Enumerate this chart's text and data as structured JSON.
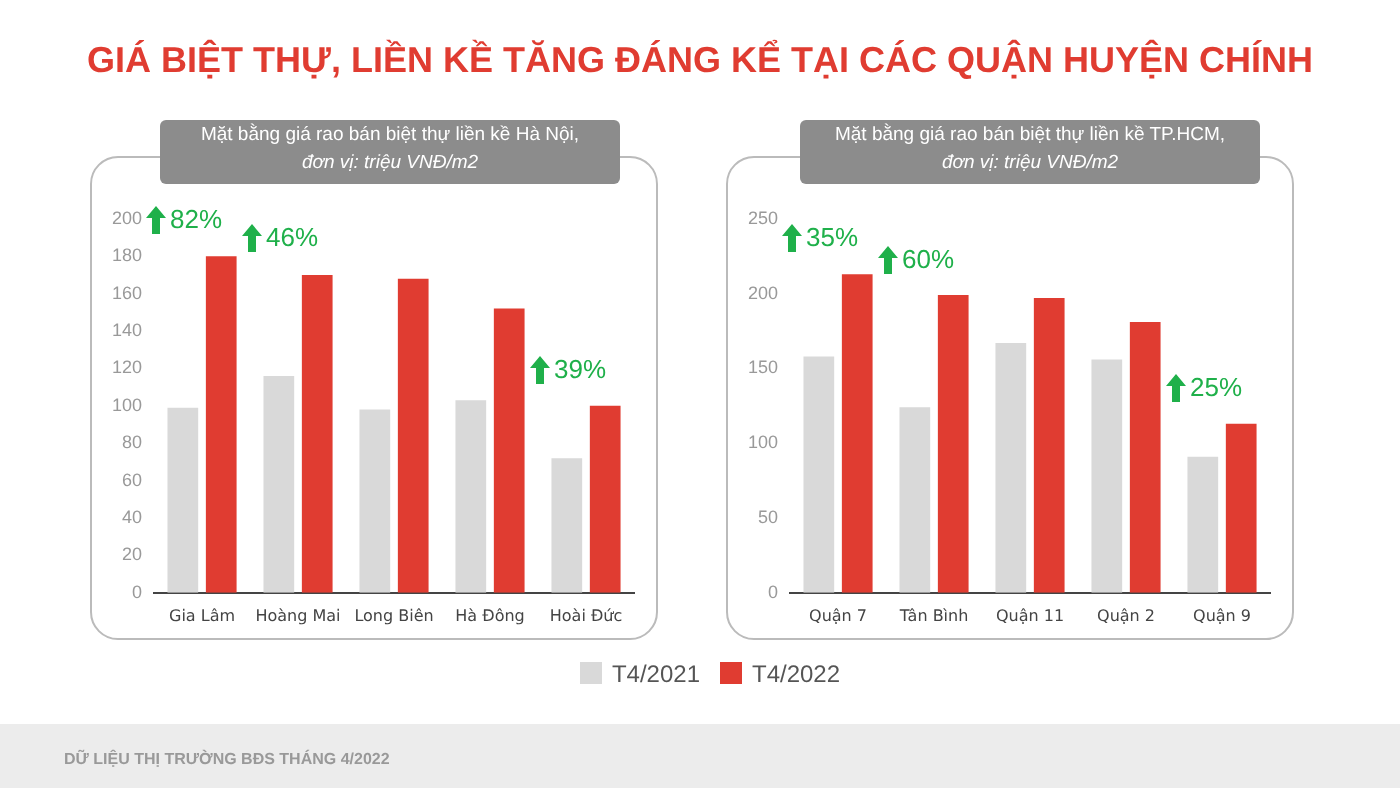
{
  "chart_data": [
    {
      "type": "bar",
      "title": "GIÁ BIỆT THỰ, LIỀN KỀ TĂNG ĐÁNG KỂ TẠI CÁC QUẬN HUYỆN CHÍNH",
      "subtitle": "Mặt bằng giá rao bán biệt thự liền kề Hà Nội, đơn vị: triệu VNĐ/m2",
      "categories": [
        "Gia Lâm",
        "Hoàng Mai",
        "Long Biên",
        "Hà Đông",
        "Hoài Đức"
      ],
      "series": [
        {
          "name": "T4/2021",
          "color": "#d9d9d9",
          "values": [
            99,
            116,
            98,
            103,
            72
          ]
        },
        {
          "name": "T4/2022",
          "color": "#e03c31",
          "values": [
            180,
            170,
            168,
            152,
            100
          ]
        }
      ],
      "ylim": [
        0,
        200
      ],
      "yticks": [
        0,
        20,
        40,
        60,
        80,
        100,
        120,
        140,
        160,
        180,
        200
      ],
      "grid": false,
      "legend": "bottom",
      "annotations": [
        {
          "text": "82%",
          "x": "Gia Lâm",
          "y": 180
        },
        {
          "text": "46%",
          "x": "Hoàng Mai",
          "y": 170
        },
        {
          "text": "39%",
          "x": "Hoài Đức",
          "y": 100
        },
        "DỮ LIỆU THỊ TRƯỜNG BĐS THÁNG 4/2022"
      ]
    },
    {
      "type": "bar",
      "subtitle": "Mặt bằng giá rao bán biệt thự liền kề TP.HCM, đơn vị: triệu VNĐ/m2",
      "categories": [
        "Quận 7",
        "Tân Bình",
        "Quận 11",
        "Quận 2",
        "Quận 9"
      ],
      "series": [
        {
          "name": "T4/2021",
          "color": "#d9d9d9",
          "values": [
            158,
            124,
            167,
            156,
            91
          ]
        },
        {
          "name": "T4/2022",
          "color": "#e03c31",
          "values": [
            213,
            199,
            197,
            181,
            113
          ]
        }
      ],
      "ylim": [
        0,
        250
      ],
      "yticks": [
        0,
        50,
        100,
        150,
        200,
        250
      ],
      "grid": false,
      "legend": "bottom",
      "annotations": [
        {
          "text": "35%",
          "x": "Quận 7",
          "y": 213
        },
        {
          "text": "60%",
          "x": "Tân Bình",
          "y": 199
        },
        {
          "text": "25%",
          "x": "Quận 9",
          "y": 113
        }
      ]
    }
  ]
}
